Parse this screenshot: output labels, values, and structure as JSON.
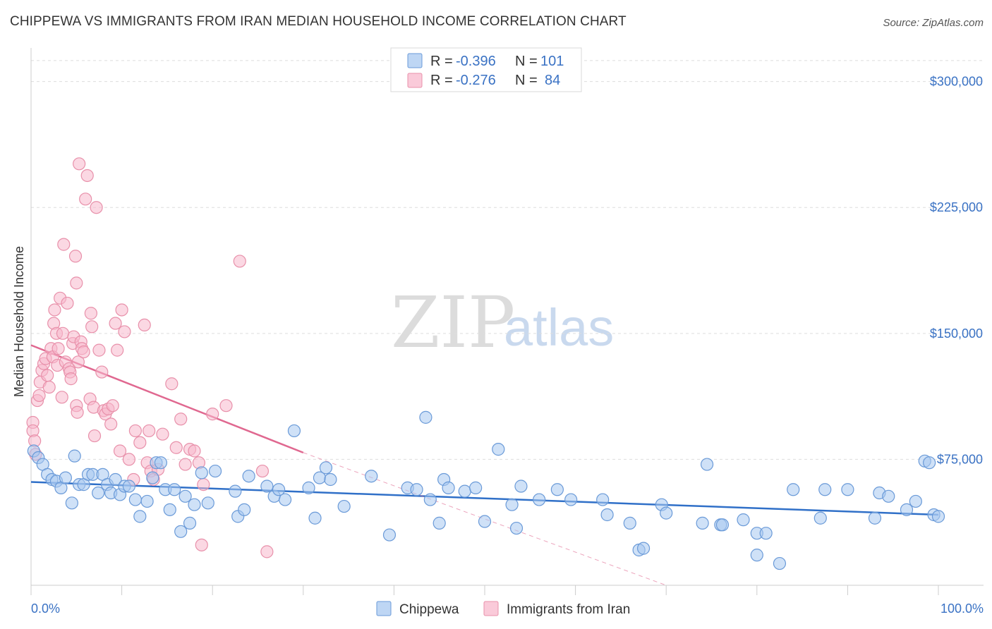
{
  "header": {
    "title": "CHIPPEWA VS IMMIGRANTS FROM IRAN MEDIAN HOUSEHOLD INCOME CORRELATION CHART",
    "source": "Source: ZipAtlas.com"
  },
  "watermark": {
    "zip": "ZIP",
    "atlas": "atlas"
  },
  "legend": {
    "rows": [
      {
        "r_label": "R =",
        "r_value": "-0.396",
        "n_label": "N =",
        "n_value": "101",
        "color": "#a8c8f0"
      },
      {
        "r_label": "R =",
        "r_value": "-0.276",
        "n_label": "N =",
        "n_value": "84",
        "color": "#f8b8cc"
      }
    ]
  },
  "colors": {
    "blue_fill": "#a8c8f0",
    "blue_stroke": "#6a9ad8",
    "blue_line": "#3070c8",
    "pink_fill": "#f8b8cc",
    "pink_stroke": "#e890aa",
    "pink_line": "#e06890",
    "axis_label": "#3a72c4",
    "grid": "#dddddd"
  },
  "chart_data": {
    "type": "scatter",
    "title": "CHIPPEWA VS IMMIGRANTS FROM IRAN MEDIAN HOUSEHOLD INCOME CORRELATION CHART",
    "xlabel": "",
    "ylabel": "Median Household Income",
    "xlim": [
      0,
      100
    ],
    "ylim": [
      0,
      320000
    ],
    "x_tick_labels": [
      "0.0%",
      "100.0%"
    ],
    "y_ticks": [
      75000,
      150000,
      225000,
      300000
    ],
    "y_tick_labels": [
      "$75,000",
      "$150,000",
      "$225,000",
      "$300,000"
    ],
    "grid": true,
    "series": [
      {
        "name": "Chippewa",
        "r": -0.396,
        "n": 101,
        "trend": {
          "x": [
            0,
            100
          ],
          "y": [
            61500,
            42000
          ],
          "style": "solid"
        },
        "points": [
          [
            0.3,
            80000
          ],
          [
            0.8,
            76000
          ],
          [
            1.3,
            72000
          ],
          [
            1.8,
            66000
          ],
          [
            2.3,
            63000
          ],
          [
            2.8,
            62000
          ],
          [
            3.3,
            58000
          ],
          [
            3.8,
            64000
          ],
          [
            4.5,
            49000
          ],
          [
            4.8,
            77000
          ],
          [
            5.3,
            60000
          ],
          [
            5.8,
            60000
          ],
          [
            6.3,
            66000
          ],
          [
            6.8,
            66000
          ],
          [
            7.4,
            55000
          ],
          [
            7.9,
            66000
          ],
          [
            8.4,
            60000
          ],
          [
            8.8,
            55000
          ],
          [
            9.3,
            63000
          ],
          [
            9.8,
            54000
          ],
          [
            10.3,
            59000
          ],
          [
            10.8,
            59000
          ],
          [
            11.5,
            51000
          ],
          [
            12.0,
            41000
          ],
          [
            12.8,
            50000
          ],
          [
            13.4,
            64000
          ],
          [
            13.8,
            73000
          ],
          [
            14.3,
            73000
          ],
          [
            14.8,
            57000
          ],
          [
            15.3,
            45000
          ],
          [
            15.8,
            57000
          ],
          [
            16.5,
            32000
          ],
          [
            17.0,
            53000
          ],
          [
            17.5,
            37000
          ],
          [
            18.0,
            48000
          ],
          [
            18.8,
            67000
          ],
          [
            19.5,
            49000
          ],
          [
            20.3,
            68000
          ],
          [
            22.5,
            56000
          ],
          [
            22.8,
            41000
          ],
          [
            23.5,
            45000
          ],
          [
            24.0,
            65000
          ],
          [
            26.0,
            59000
          ],
          [
            26.8,
            53000
          ],
          [
            27.3,
            57000
          ],
          [
            28.0,
            51000
          ],
          [
            29.0,
            92000
          ],
          [
            30.6,
            58000
          ],
          [
            31.3,
            40000
          ],
          [
            31.8,
            64000
          ],
          [
            32.5,
            70000
          ],
          [
            33.0,
            63000
          ],
          [
            34.5,
            47000
          ],
          [
            37.5,
            65000
          ],
          [
            39.5,
            30000
          ],
          [
            41.5,
            58000
          ],
          [
            42.5,
            57000
          ],
          [
            43.5,
            100000
          ],
          [
            44.0,
            51000
          ],
          [
            45.0,
            37000
          ],
          [
            45.5,
            63000
          ],
          [
            46.0,
            58000
          ],
          [
            47.8,
            56000
          ],
          [
            49.0,
            58000
          ],
          [
            50.0,
            38000
          ],
          [
            51.5,
            81000
          ],
          [
            53.0,
            48000
          ],
          [
            53.5,
            34000
          ],
          [
            54.0,
            59000
          ],
          [
            56.0,
            51000
          ],
          [
            58.0,
            57000
          ],
          [
            59.5,
            51000
          ],
          [
            63.0,
            51000
          ],
          [
            63.5,
            42000
          ],
          [
            66.0,
            37000
          ],
          [
            67.0,
            21000
          ],
          [
            67.5,
            22000
          ],
          [
            69.5,
            48000
          ],
          [
            70.0,
            43000
          ],
          [
            74.0,
            37000
          ],
          [
            74.5,
            72000
          ],
          [
            76.0,
            36000
          ],
          [
            76.2,
            36000
          ],
          [
            78.5,
            39000
          ],
          [
            80.0,
            31000
          ],
          [
            80.0,
            18000
          ],
          [
            81.0,
            31000
          ],
          [
            82.5,
            13000
          ],
          [
            84.0,
            57000
          ],
          [
            87.0,
            40000
          ],
          [
            87.5,
            57000
          ],
          [
            90.0,
            57000
          ],
          [
            93.0,
            40000
          ],
          [
            93.5,
            55000
          ],
          [
            94.5,
            53000
          ],
          [
            96.5,
            45000
          ],
          [
            97.5,
            50000
          ],
          [
            98.5,
            74000
          ],
          [
            99.0,
            73000
          ],
          [
            99.5,
            42000
          ],
          [
            100.0,
            41000
          ]
        ]
      },
      {
        "name": "Immigrants from Iran",
        "r": -0.276,
        "n": 84,
        "trend": {
          "x": [
            0,
            30
          ],
          "y": [
            143000,
            79000
          ],
          "style": "solid",
          "dashed_extension": {
            "x": [
              30,
              70
            ],
            "y": [
              79000,
              0
            ]
          }
        },
        "points": [
          [
            0.2,
            97000
          ],
          [
            0.2,
            92000
          ],
          [
            0.4,
            86000
          ],
          [
            0.5,
            78000
          ],
          [
            0.7,
            110000
          ],
          [
            0.9,
            113000
          ],
          [
            1.0,
            121000
          ],
          [
            1.2,
            128000
          ],
          [
            1.4,
            132000
          ],
          [
            1.6,
            135000
          ],
          [
            1.8,
            125000
          ],
          [
            2.0,
            118000
          ],
          [
            2.2,
            141000
          ],
          [
            2.4,
            136000
          ],
          [
            2.5,
            156000
          ],
          [
            2.6,
            164000
          ],
          [
            2.8,
            150000
          ],
          [
            2.9,
            131000
          ],
          [
            3.0,
            141000
          ],
          [
            3.2,
            171000
          ],
          [
            3.4,
            112000
          ],
          [
            3.5,
            150000
          ],
          [
            3.6,
            203000
          ],
          [
            3.8,
            133000
          ],
          [
            4.0,
            168000
          ],
          [
            4.2,
            129000
          ],
          [
            4.3,
            127000
          ],
          [
            4.4,
            123000
          ],
          [
            4.6,
            144000
          ],
          [
            4.7,
            148000
          ],
          [
            4.9,
            196000
          ],
          [
            5.0,
            180000
          ],
          [
            5.0,
            107000
          ],
          [
            5.1,
            103000
          ],
          [
            5.2,
            133000
          ],
          [
            5.3,
            251000
          ],
          [
            5.5,
            145000
          ],
          [
            5.6,
            141000
          ],
          [
            5.8,
            139000
          ],
          [
            6.0,
            230000
          ],
          [
            6.2,
            244000
          ],
          [
            6.5,
            111000
          ],
          [
            6.6,
            162000
          ],
          [
            6.7,
            154000
          ],
          [
            6.9,
            106000
          ],
          [
            7.0,
            89000
          ],
          [
            7.2,
            225000
          ],
          [
            7.5,
            140000
          ],
          [
            7.8,
            127000
          ],
          [
            8.0,
            104000
          ],
          [
            8.2,
            102000
          ],
          [
            8.5,
            105000
          ],
          [
            8.8,
            96000
          ],
          [
            9.0,
            107000
          ],
          [
            9.3,
            156000
          ],
          [
            9.5,
            140000
          ],
          [
            9.8,
            80000
          ],
          [
            10.0,
            164000
          ],
          [
            10.3,
            151000
          ],
          [
            10.8,
            75000
          ],
          [
            11.3,
            63000
          ],
          [
            11.5,
            92000
          ],
          [
            12.0,
            85000
          ],
          [
            12.5,
            155000
          ],
          [
            12.8,
            73000
          ],
          [
            13.0,
            92000
          ],
          [
            13.2,
            68000
          ],
          [
            13.5,
            63000
          ],
          [
            14.0,
            69000
          ],
          [
            14.5,
            90000
          ],
          [
            15.5,
            120000
          ],
          [
            16.0,
            82000
          ],
          [
            16.5,
            99000
          ],
          [
            17.0,
            72000
          ],
          [
            17.5,
            81000
          ],
          [
            18.0,
            80000
          ],
          [
            18.5,
            73000
          ],
          [
            19.0,
            60000
          ],
          [
            20.0,
            102000
          ],
          [
            21.5,
            107000
          ],
          [
            23.0,
            193000
          ],
          [
            25.5,
            68000
          ],
          [
            18.8,
            24000
          ],
          [
            26.0,
            20000
          ]
        ]
      }
    ],
    "bottom_legend": [
      "Chippewa",
      "Immigrants from Iran"
    ]
  }
}
